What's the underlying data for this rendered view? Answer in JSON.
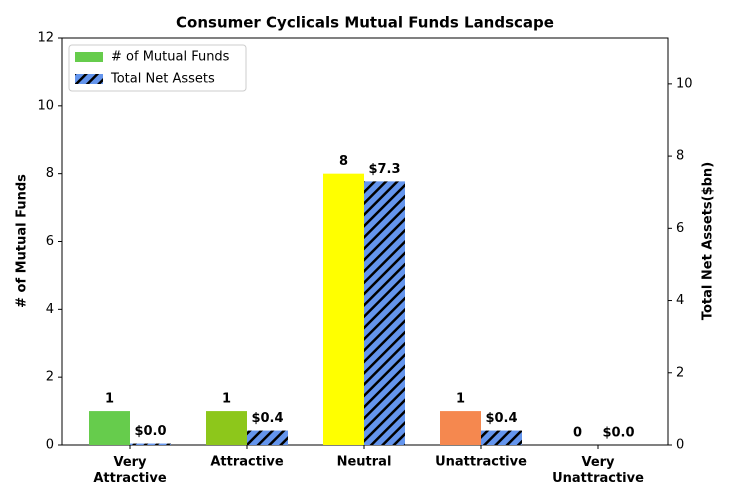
{
  "chart_data": {
    "type": "bar",
    "title": "Consumer Cyclicals Mutual Funds Landscape",
    "ylabel": "# of Mutual Funds",
    "y2label": "Total Net Assets($bn)",
    "categories": [
      "Very\nAttractive",
      "Attractive",
      "Neutral",
      "Unattractive",
      "Very\nUnattractive"
    ],
    "series": [
      {
        "name": "# of Mutual Funds",
        "colors": [
          "#66cc4c",
          "#8dc71b",
          "#ffff00",
          "#f5884f",
          "#e8453c"
        ],
        "color": "#66cc4c",
        "values": [
          1,
          1,
          8,
          1,
          0
        ]
      },
      {
        "name": "Total Net Assets",
        "color": "#6495ed",
        "hatch": true,
        "axis": "y2",
        "values": [
          0.04,
          0.4,
          7.3,
          0.4,
          0.0
        ],
        "value_labels": [
          "$0.0",
          "$0.4",
          "$7.3",
          "$0.4",
          "$0.0"
        ]
      }
    ],
    "ylim": [
      0,
      12
    ],
    "yticks": [
      0,
      2,
      4,
      6,
      8,
      10,
      12
    ],
    "y2lim": [
      0,
      11.27
    ],
    "y2ticks": [
      0,
      2,
      4,
      6,
      8,
      10
    ],
    "legend": "upper left"
  }
}
